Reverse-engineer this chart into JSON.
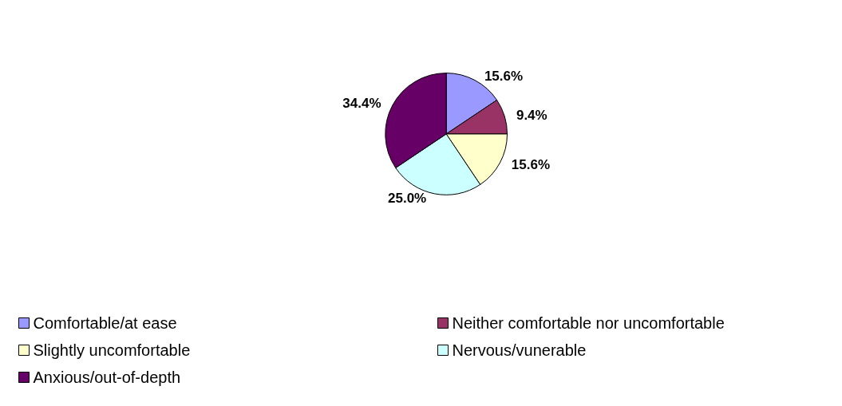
{
  "chart_data": {
    "type": "pie",
    "categories": [
      "Comfortable/at ease",
      "Neither comfortable nor uncomfortable",
      "Slightly uncomfortable",
      "Nervous/vunerable",
      "Anxious/out-of-depth"
    ],
    "values": [
      15.6,
      9.4,
      15.6,
      25.0,
      34.4
    ],
    "colors": [
      "#9999ff",
      "#993366",
      "#ffffcc",
      "#ccffff",
      "#660066"
    ],
    "value_labels": [
      "15.6%",
      "9.4%",
      "15.6%",
      "25.0%",
      "34.4%"
    ],
    "legend": "bottom"
  }
}
